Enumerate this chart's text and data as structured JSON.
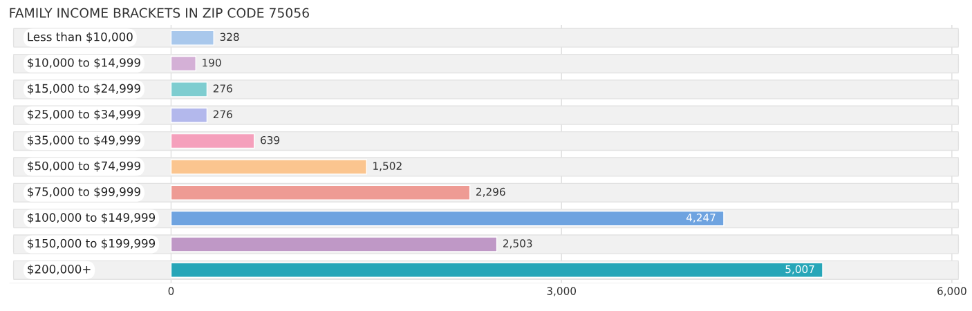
{
  "chart_data": {
    "type": "bar",
    "orientation": "horizontal",
    "title": "FAMILY INCOME BRACKETS IN ZIP CODE 75056",
    "categories": [
      "Less than $10,000",
      "$10,000 to $14,999",
      "$15,000 to $24,999",
      "$25,000 to $34,999",
      "$35,000 to $49,999",
      "$50,000 to $74,999",
      "$75,000 to $99,999",
      "$100,000 to $149,999",
      "$150,000 to $199,999",
      "$200,000+"
    ],
    "values": [
      328,
      190,
      276,
      276,
      639,
      1502,
      2296,
      4247,
      2503,
      5007
    ],
    "value_labels": [
      "328",
      "190",
      "276",
      "276",
      "639",
      "1,502",
      "2,296",
      "4,247",
      "2,503",
      "5,007"
    ],
    "colors": [
      "#a9c8ec",
      "#d4b0d6",
      "#7ecdd0",
      "#b3b8ec",
      "#f5a0bc",
      "#fbc58f",
      "#ee9b94",
      "#6ea3e0",
      "#bf98c6",
      "#27a6b8"
    ],
    "xlim": [
      -1240,
      6080
    ],
    "xticks": [
      0,
      {
        "value": 3000,
        "label": "3,000"
      },
      {
        "value": 6000,
        "label": "6,000"
      }
    ],
    "grid": "x"
  }
}
